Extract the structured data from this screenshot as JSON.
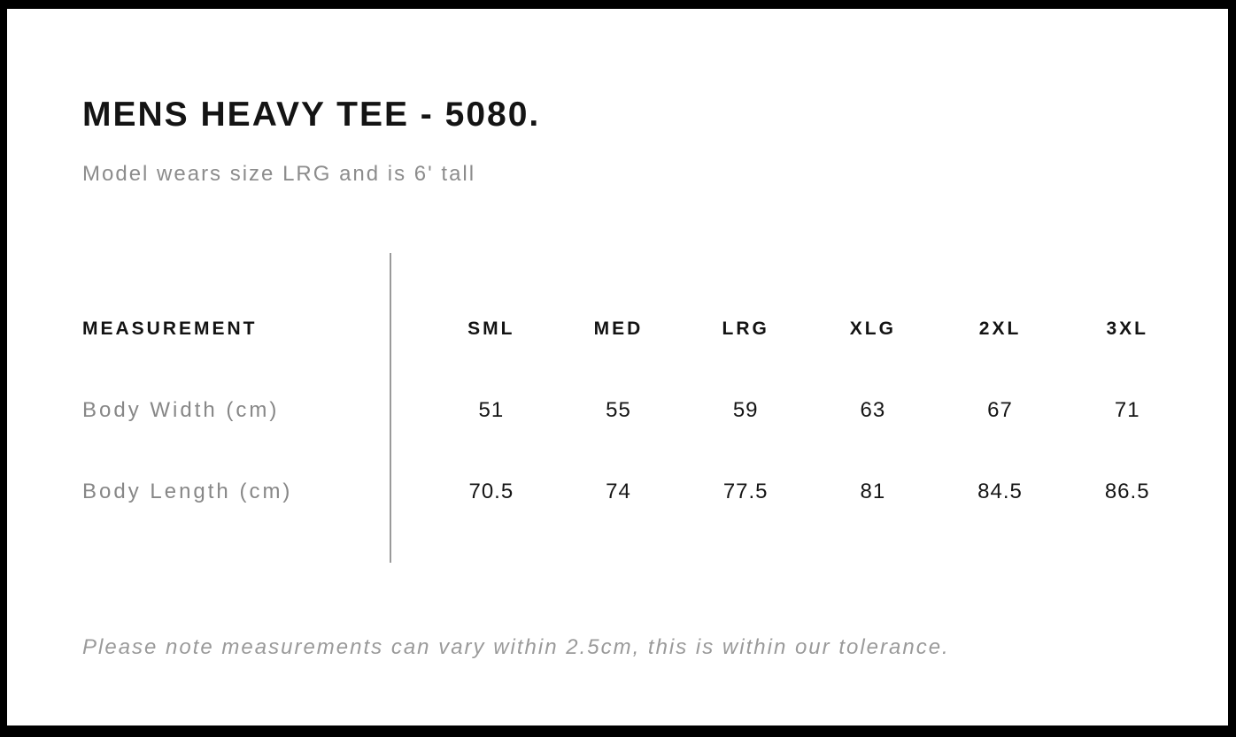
{
  "page": {
    "title": "MENS HEAVY TEE - 5080.",
    "subtitle": "Model wears size LRG and is 6' tall",
    "note": "Please note measurements can vary within 2.5cm, this is within our tolerance."
  },
  "table": {
    "measurement_label": "MEASUREMENT",
    "sizes": [
      "SML",
      "MED",
      "LRG",
      "XLG",
      "2XL",
      "3XL"
    ],
    "rows": [
      {
        "label": "Body Width (cm)",
        "values": [
          "51",
          "55",
          "59",
          "63",
          "67",
          "71"
        ]
      },
      {
        "label": "Body Length (cm)",
        "values": [
          "70.5",
          "74",
          "77.5",
          "81",
          "84.5",
          "86.5"
        ]
      }
    ]
  },
  "colors": {
    "frame_border": "#000000",
    "heading_text": "#141414",
    "muted_text": "#8c8c8c",
    "note_text": "#9a9a9a",
    "divider": "#9a9a9a"
  }
}
